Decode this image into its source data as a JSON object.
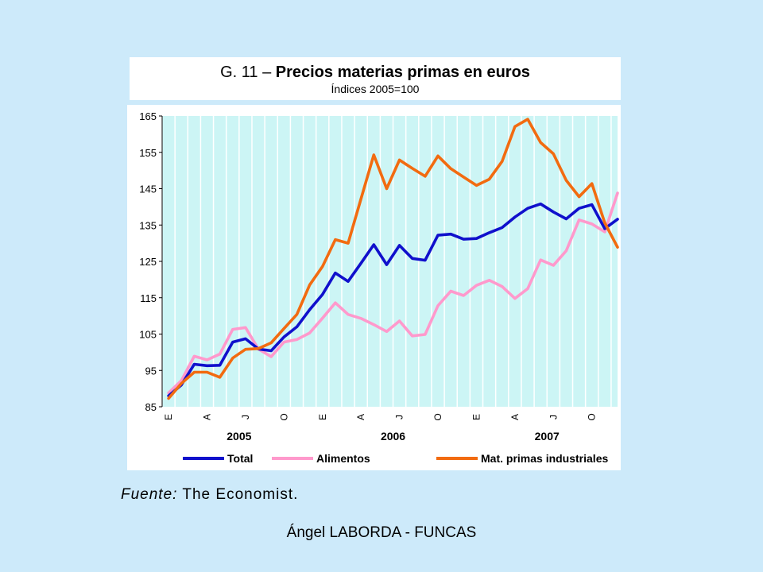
{
  "slide": {
    "source_label": "Fuente:",
    "source_value": "The Economist.",
    "footer": "Ángel LABORDA - FUNCAS"
  },
  "chart_data": {
    "type": "line",
    "title_prefix": "G. 11 – ",
    "title": "Precios materias primas en euros",
    "subtitle": "Índices 2005=100",
    "xlabel": "",
    "ylabel": "",
    "ylim": [
      85,
      165
    ],
    "yticks": [
      85,
      95,
      105,
      115,
      125,
      135,
      145,
      155,
      165
    ],
    "x_month_labels": [
      "E",
      "A",
      "J",
      "O",
      "E",
      "A",
      "J",
      "O",
      "E",
      "A",
      "J",
      "O"
    ],
    "x_year_labels": [
      "2005",
      "2006",
      "2007"
    ],
    "grid": "vertical",
    "legend_position": "bottom",
    "colors": {
      "plot_bg": "#ccf5f5",
      "grid": "#ffffff",
      "total": "#1010cc",
      "alimentos": "#ff99cc",
      "industriales": "#f26b10"
    },
    "series": [
      {
        "name": "Total",
        "values": [
          88,
          91,
          96.7,
          96.3,
          96.4,
          102.8,
          103.7,
          100.9,
          100.4,
          104.2,
          107,
          111.7,
          115.9,
          121.8,
          119.5,
          124.5,
          129.6,
          124.1,
          129.4,
          125.8,
          125.3,
          132.2,
          132.5,
          131.1,
          131.3,
          132.9,
          134.3,
          137.2,
          139.6,
          140.8,
          138.6,
          136.7,
          139.6,
          140.6,
          134,
          136.6
        ]
      },
      {
        "name": "Alimentos",
        "values": [
          88.8,
          92.2,
          98.9,
          97.9,
          99.5,
          106.3,
          106.8,
          100.9,
          98.8,
          102.8,
          103.5,
          105.3,
          109.4,
          113.6,
          110.4,
          109.3,
          107.6,
          105.7,
          108.6,
          104.5,
          104.9,
          112.8,
          116.8,
          115.6,
          118.4,
          119.8,
          118.1,
          114.8,
          117.5,
          125.4,
          123.9,
          127.9,
          136.4,
          135.3,
          133.1,
          143.8
        ]
      },
      {
        "name": "Mat. primas industriales",
        "values": [
          87.3,
          91.4,
          94.5,
          94.5,
          93.1,
          98.4,
          100.8,
          101,
          102.6,
          106.5,
          110.4,
          118.5,
          123.6,
          131,
          130,
          142.2,
          154.3,
          145,
          152.9,
          150.6,
          148.4,
          154,
          150.5,
          148.2,
          145.9,
          147.6,
          152.5,
          162.1,
          164.1,
          157.7,
          154.6,
          147.3,
          142.8,
          146.4,
          135.6,
          128.9
        ]
      }
    ]
  }
}
